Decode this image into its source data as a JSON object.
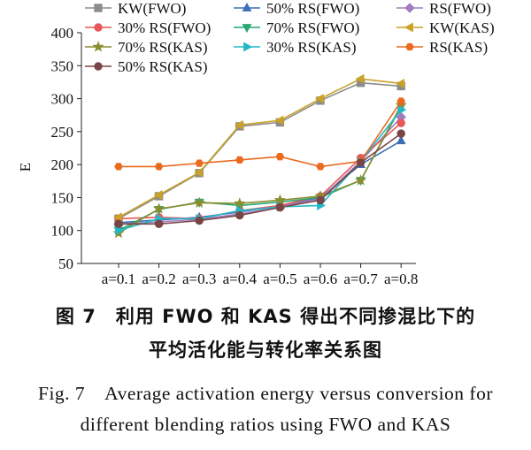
{
  "chart_data": {
    "type": "line",
    "title": "",
    "xlabel": "",
    "ylabel": "E",
    "ylim": [
      50,
      400
    ],
    "yticks": [
      50,
      100,
      150,
      200,
      250,
      300,
      350,
      400
    ],
    "categories": [
      "a=0.1",
      "a=0.2",
      "a=0.3",
      "a=0.4",
      "a=0.5",
      "a=0.6",
      "a=0.7",
      "a=0.8"
    ],
    "legend_position": "top",
    "grid": false,
    "series": [
      {
        "name": "KW(FWO)",
        "color": "#8c8c8c",
        "marker": "square",
        "values": [
          118,
          152,
          187,
          258,
          264,
          297,
          324,
          319
        ]
      },
      {
        "name": "50% RS(FWO)",
        "color": "#3c6fb5",
        "marker": "triangle-up",
        "values": [
          112,
          116,
          120,
          128,
          138,
          150,
          200,
          236
        ]
      },
      {
        "name": "RS(FWO)",
        "color": "#a07cc0",
        "marker": "diamond",
        "values": [
          110,
          113,
          117,
          125,
          136,
          148,
          205,
          272
        ]
      },
      {
        "name": "30% RS(FWO)",
        "color": "#e8575a",
        "marker": "circle",
        "values": [
          118,
          120,
          118,
          130,
          138,
          152,
          210,
          263
        ]
      },
      {
        "name": "70% RS(FWO)",
        "color": "#2aa772",
        "marker": "triangle-down",
        "values": [
          100,
          132,
          143,
          138,
          143,
          150,
          176,
          288
        ]
      },
      {
        "name": "KW(KAS)",
        "color": "#c9a227",
        "marker": "triangle-left",
        "values": [
          120,
          154,
          188,
          260,
          267,
          300,
          330,
          323
        ]
      },
      {
        "name": "70% RS(KAS)",
        "color": "#8c8c30",
        "marker": "star",
        "values": [
          96,
          133,
          142,
          141,
          146,
          152,
          176,
          290
        ]
      },
      {
        "name": "30% RS(KAS)",
        "color": "#22b8c8",
        "marker": "triangle-right",
        "values": [
          100,
          118,
          118,
          130,
          136,
          138,
          205,
          283
        ]
      },
      {
        "name": "RS(KAS)",
        "color": "#ea6a1f",
        "marker": "hexagon",
        "values": [
          197,
          197,
          202,
          207,
          212,
          197,
          205,
          296
        ]
      },
      {
        "name": "50% RS(KAS)",
        "color": "#7a4545",
        "marker": "circle",
        "values": [
          110,
          110,
          115,
          123,
          135,
          146,
          203,
          247
        ]
      }
    ]
  },
  "caption": {
    "cn_line1": "图 7　利用 FWO 和 KAS 得出不同掺混比下的",
    "cn_line2": "平均活化能与转化率关系图",
    "en_line1": "Fig. 7　Average activation energy versus conversion for",
    "en_line2": "different blending ratios using FWO and KAS"
  }
}
